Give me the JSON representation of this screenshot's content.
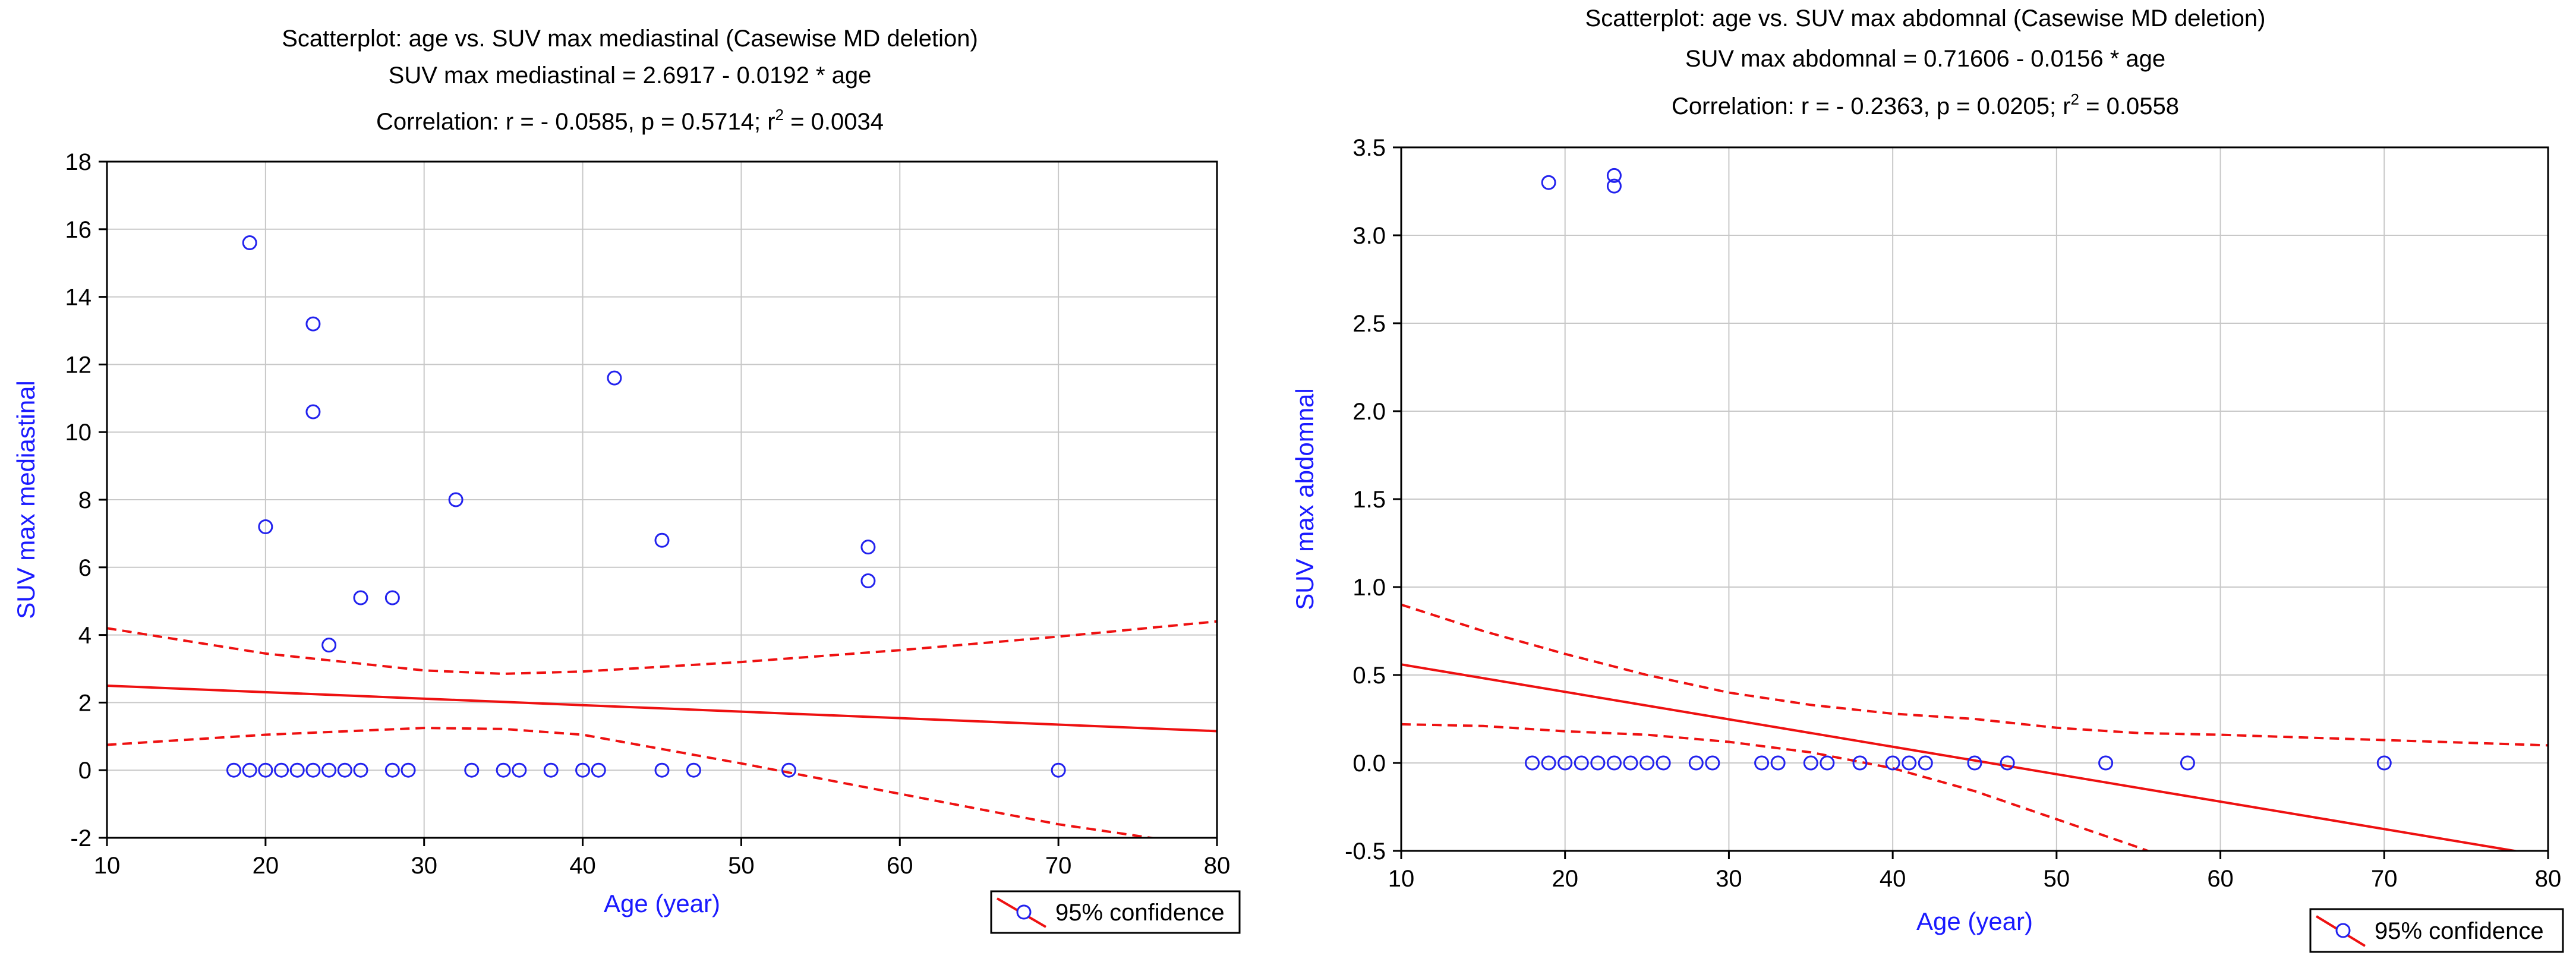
{
  "colors": {
    "points": "#2222ee",
    "fit": "#ee1111",
    "grid": "#c8c8c8",
    "axis_label": "#1a1aff"
  },
  "chart_data": [
    {
      "type": "scatter",
      "title": "Scatterplot: age vs. SUV max mediastinal (Casewise MD deletion)",
      "equation": "SUV max mediastinal = 2.6917 - 0.0192  * age",
      "correlation_prefix": "Correlation: r = - 0.0585,  p = 0.5714; r",
      "correlation_sup": "2",
      "correlation_suffix": " = 0.0034",
      "xlabel": "Age (year)",
      "ylabel": "SUV max mediastinal",
      "xlim": [
        10,
        80
      ],
      "ylim": [
        -2,
        18
      ],
      "xticks": [
        10,
        20,
        30,
        40,
        50,
        60,
        70,
        80
      ],
      "yticks": [
        -2,
        0,
        2,
        4,
        6,
        8,
        10,
        12,
        14,
        16,
        18
      ],
      "tick_decimals": 0,
      "grid": true,
      "legend": "95% confidence",
      "legend_position": "bottom-right",
      "fit": {
        "intercept": 2.6917,
        "slope": -0.0192
      },
      "ci_upper": [
        [
          10,
          4.2
        ],
        [
          20,
          3.45
        ],
        [
          30,
          2.95
        ],
        [
          35,
          2.85
        ],
        [
          40,
          2.92
        ],
        [
          50,
          3.2
        ],
        [
          60,
          3.55
        ],
        [
          70,
          3.95
        ],
        [
          80,
          4.4
        ]
      ],
      "ci_lower": [
        [
          10,
          0.75
        ],
        [
          20,
          1.05
        ],
        [
          30,
          1.25
        ],
        [
          35,
          1.22
        ],
        [
          40,
          1.05
        ],
        [
          50,
          0.2
        ],
        [
          60,
          -0.7
        ],
        [
          70,
          -1.6
        ],
        [
          78,
          -2.15
        ]
      ],
      "points": [
        [
          18,
          0
        ],
        [
          19,
          0
        ],
        [
          20,
          0
        ],
        [
          21,
          0
        ],
        [
          22,
          0
        ],
        [
          23,
          0
        ],
        [
          24,
          0
        ],
        [
          25,
          0
        ],
        [
          26,
          0
        ],
        [
          28,
          0
        ],
        [
          29,
          0
        ],
        [
          33,
          0
        ],
        [
          35,
          0
        ],
        [
          36,
          0
        ],
        [
          38,
          0
        ],
        [
          40,
          0
        ],
        [
          41,
          0
        ],
        [
          45,
          0
        ],
        [
          47,
          0
        ],
        [
          53,
          0
        ],
        [
          70,
          0
        ],
        [
          19,
          15.6
        ],
        [
          20,
          7.2
        ],
        [
          23,
          13.2
        ],
        [
          23,
          10.6
        ],
        [
          24,
          3.7
        ],
        [
          26,
          5.1
        ],
        [
          28,
          5.1
        ],
        [
          32,
          8.0
        ],
        [
          42,
          11.6
        ],
        [
          45,
          6.8
        ],
        [
          58,
          6.6
        ],
        [
          58,
          5.6
        ]
      ]
    },
    {
      "type": "scatter",
      "title": "Scatterplot: age vs. SUV max abdomnal (Casewise MD deletion)",
      "equation": "SUV max abdomnal = 0.71606 - 0.0156  * age",
      "correlation_prefix": "Correlation: r = - 0.2363, p = 0.0205; r",
      "correlation_sup": "2",
      "correlation_suffix": " = 0.0558",
      "xlabel": "Age (year)",
      "ylabel": "SUV max abdomnal",
      "xlim": [
        10,
        80
      ],
      "ylim": [
        -0.5,
        3.5
      ],
      "xticks": [
        10,
        20,
        30,
        40,
        50,
        60,
        70,
        80
      ],
      "yticks": [
        -0.5,
        0.0,
        0.5,
        1.0,
        1.5,
        2.0,
        2.5,
        3.0,
        3.5
      ],
      "tick_decimals": 1,
      "grid": true,
      "legend": "95% confidence",
      "legend_position": "bottom-right",
      "fit": {
        "intercept": 0.71606,
        "slope": -0.0156
      },
      "ci_upper": [
        [
          10,
          0.9
        ],
        [
          15,
          0.75
        ],
        [
          20,
          0.62
        ],
        [
          25,
          0.5
        ],
        [
          30,
          0.4
        ],
        [
          35,
          0.33
        ],
        [
          40,
          0.28
        ],
        [
          45,
          0.25
        ],
        [
          50,
          0.2
        ],
        [
          55,
          0.17
        ],
        [
          60,
          0.16
        ],
        [
          70,
          0.13
        ],
        [
          80,
          0.1
        ]
      ],
      "ci_lower": [
        [
          10,
          0.22
        ],
        [
          15,
          0.21
        ],
        [
          20,
          0.18
        ],
        [
          25,
          0.16
        ],
        [
          30,
          0.12
        ],
        [
          35,
          0.06
        ],
        [
          40,
          -0.03
        ],
        [
          45,
          -0.16
        ],
        [
          50,
          -0.32
        ],
        [
          55,
          -0.48
        ],
        [
          57,
          -0.55
        ]
      ],
      "points": [
        [
          18,
          0
        ],
        [
          19,
          0
        ],
        [
          20,
          0
        ],
        [
          21,
          0
        ],
        [
          22,
          0
        ],
        [
          23,
          0
        ],
        [
          24,
          0
        ],
        [
          25,
          0
        ],
        [
          26,
          0
        ],
        [
          28,
          0
        ],
        [
          29,
          0
        ],
        [
          32,
          0
        ],
        [
          33,
          0
        ],
        [
          35,
          0
        ],
        [
          36,
          0
        ],
        [
          38,
          0
        ],
        [
          40,
          0
        ],
        [
          41,
          0
        ],
        [
          42,
          0
        ],
        [
          45,
          0
        ],
        [
          47,
          0
        ],
        [
          53,
          0
        ],
        [
          58,
          0
        ],
        [
          70,
          0
        ],
        [
          19,
          3.3
        ],
        [
          23,
          3.34
        ],
        [
          23,
          3.28
        ]
      ]
    }
  ]
}
